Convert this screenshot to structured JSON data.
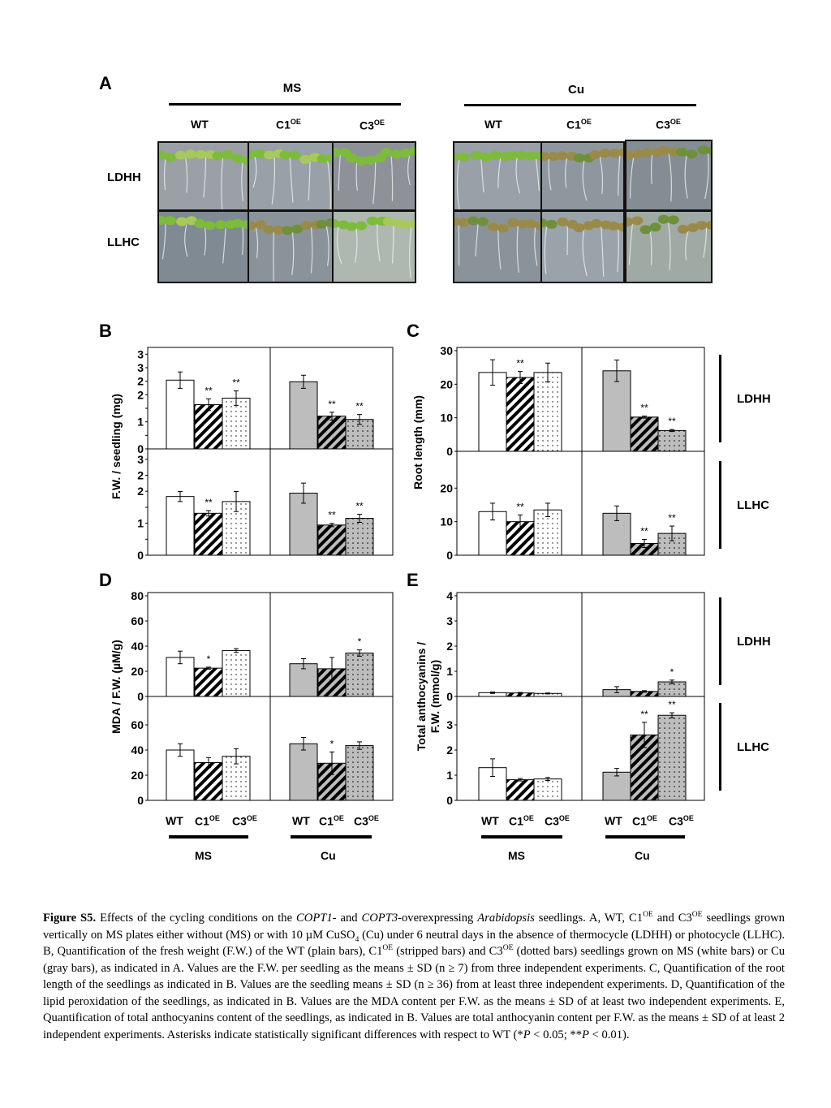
{
  "panelA": {
    "label": "A",
    "groups": [
      "MS",
      "Cu"
    ],
    "genotypes": [
      "WT",
      "C1",
      "C3"
    ],
    "sup": "OE",
    "rows": [
      "LDHH",
      "LLHC"
    ]
  },
  "panel_labels": {
    "B": "B",
    "C": "C",
    "D": "D",
    "E": "E"
  },
  "right_labels": {
    "ldhh": "LDHH",
    "llhc": "LLHC"
  },
  "xaxis": {
    "genotypes": [
      "WT",
      "C1",
      "C3"
    ],
    "sup": "OE",
    "groups": [
      "MS",
      "Cu"
    ]
  },
  "colors": {
    "ms_bar": "#ffffff",
    "cu_bar": "#bdbdbd",
    "stroke": "#000000"
  },
  "chart_data": [
    {
      "id": "B",
      "type": "bar",
      "ylabel": "F.W. / seedling (mg)",
      "categories": [
        "WT",
        "C1OE",
        "C3OE"
      ],
      "groups": [
        "MS",
        "Cu"
      ],
      "patterns": [
        "plain",
        "striped",
        "dotted"
      ],
      "subplots": [
        {
          "row": "LDHH",
          "ylim": [
            0,
            3
          ],
          "ticks": [
            "0",
            "",
            "1",
            "",
            "2",
            "2",
            "3",
            "3"
          ],
          "series": [
            {
              "name": "MS",
              "values": [
                2.1,
                1.35,
                1.55
              ],
              "errors": [
                0.25,
                0.18,
                0.22
              ],
              "sig": [
                "",
                "**",
                "**"
              ]
            },
            {
              "name": "Cu",
              "values": [
                2.05,
                1.0,
                0.9
              ],
              "errors": [
                0.2,
                0.12,
                0.15
              ],
              "sig": [
                "",
                "**",
                "**"
              ]
            }
          ]
        },
        {
          "row": "LLHC",
          "ylim": [
            0,
            3
          ],
          "ticks": [
            "0",
            "",
            "1",
            "",
            "2",
            "2",
            "3"
          ],
          "series": [
            {
              "name": "MS",
              "values": [
                1.75,
                1.25,
                1.6
              ],
              "errors": [
                0.15,
                0.08,
                0.3
              ],
              "sig": [
                "",
                "**",
                ""
              ]
            },
            {
              "name": "Cu",
              "values": [
                1.85,
                0.9,
                1.1
              ],
              "errors": [
                0.3,
                0.05,
                0.12
              ],
              "sig": [
                "",
                "**",
                "**"
              ]
            }
          ]
        }
      ]
    },
    {
      "id": "C",
      "type": "bar",
      "ylabel": "Root length (mm)",
      "categories": [
        "WT",
        "C1OE",
        "C3OE"
      ],
      "groups": [
        "MS",
        "Cu"
      ],
      "subplots": [
        {
          "row": "LDHH",
          "ylim": [
            0,
            30
          ],
          "ticks": [
            "0",
            "10",
            "20",
            "30"
          ],
          "series": [
            {
              "name": "MS",
              "values": [
                23.5,
                22,
                23.5
              ],
              "errors": [
                3.8,
                1.8,
                2.8
              ],
              "sig": [
                "",
                "**",
                ""
              ]
            },
            {
              "name": "Cu",
              "values": [
                24,
                10.2,
                6.2
              ],
              "errors": [
                3.2,
                0.3,
                0.3
              ],
              "sig": [
                "",
                "**",
                "**"
              ]
            }
          ]
        },
        {
          "row": "LLHC",
          "ylim": [
            0,
            30
          ],
          "ticks": [
            "0",
            "10",
            "20"
          ],
          "series": [
            {
              "name": "MS",
              "values": [
                13,
                10,
                13.5
              ],
              "errors": [
                2.5,
                2,
                2
              ],
              "sig": [
                "",
                "**",
                ""
              ]
            },
            {
              "name": "Cu",
              "values": [
                12.5,
                3.5,
                6.5
              ],
              "errors": [
                2.2,
                1.2,
                2.2
              ],
              "sig": [
                "",
                "**",
                "**"
              ]
            }
          ]
        }
      ]
    },
    {
      "id": "D",
      "type": "bar",
      "ylabel": "MDA / F.W. (µM/g)",
      "categories": [
        "WT",
        "C1OE",
        "C3OE"
      ],
      "groups": [
        "MS",
        "Cu"
      ],
      "subplots": [
        {
          "row": "LDHH",
          "ylim": [
            0,
            80
          ],
          "ticks": [
            "0",
            "20",
            "40",
            "60",
            "80"
          ],
          "series": [
            {
              "name": "MS",
              "values": [
                31,
                22.5,
                36.5
              ],
              "errors": [
                5,
                0.8,
                1.5
              ],
              "sig": [
                "",
                "*",
                ""
              ]
            },
            {
              "name": "Cu",
              "values": [
                26,
                22,
                34.5
              ],
              "errors": [
                4,
                9,
                2.5
              ],
              "sig": [
                "",
                "",
                "*"
              ]
            }
          ]
        },
        {
          "row": "LLHC",
          "ylim": [
            0,
            80
          ],
          "ticks": [
            "0",
            "20",
            "40",
            "60"
          ],
          "series": [
            {
              "name": "MS",
              "values": [
                40,
                30,
                35
              ],
              "errors": [
                5,
                4,
                6
              ],
              "sig": [
                "",
                "",
                ""
              ]
            },
            {
              "name": "Cu",
              "values": [
                45,
                29.5,
                43.5
              ],
              "errors": [
                5,
                9,
                3
              ],
              "sig": [
                "",
                "*",
                ""
              ]
            }
          ]
        }
      ]
    },
    {
      "id": "E",
      "type": "bar",
      "ylabel": "Total anthocyanins / F.W. (mmol/g)",
      "categories": [
        "WT",
        "C1OE",
        "C3OE"
      ],
      "groups": [
        "MS",
        "Cu"
      ],
      "subplots": [
        {
          "row": "LDHH",
          "ylim": [
            0,
            4
          ],
          "ticks": [
            "0",
            "1",
            "2",
            "3",
            "4"
          ],
          "series": [
            {
              "name": "MS",
              "values": [
                0.15,
                0.14,
                0.12
              ],
              "errors": [
                0.03,
                0.02,
                0.02
              ],
              "sig": [
                "",
                "",
                ""
              ]
            },
            {
              "name": "Cu",
              "values": [
                0.27,
                0.2,
                0.58
              ],
              "errors": [
                0.12,
                0.03,
                0.07
              ],
              "sig": [
                "",
                "",
                "*"
              ]
            }
          ]
        },
        {
          "row": "LLHC",
          "ylim": [
            0,
            4
          ],
          "ticks": [
            "0",
            "1",
            "2",
            "3"
          ],
          "series": [
            {
              "name": "MS",
              "values": [
                1.3,
                0.82,
                0.85
              ],
              "errors": [
                0.35,
                0.05,
                0.06
              ],
              "sig": [
                "",
                "",
                ""
              ]
            },
            {
              "name": "Cu",
              "values": [
                1.12,
                2.6,
                3.38
              ],
              "errors": [
                0.15,
                0.5,
                0.1
              ],
              "sig": [
                "",
                "**",
                "**"
              ]
            }
          ]
        }
      ]
    }
  ],
  "caption": {
    "p1": "Figure S5.",
    "p2": " Effects of the cycling conditions on the ",
    "p3": "COPT1",
    "p4": "- and ",
    "p5": "COPT3",
    "p6": "-overexpressing ",
    "p7": "Arabidopsis",
    "p8": " seedlings. A, WT, C1",
    "p9": "OE",
    "p10": " and C3",
    "p11": "OE",
    "p12": " seedlings grown vertically on MS plates either without (MS) or with 10 µM CuSO",
    "p13": "4",
    "p14": " (Cu) under 6 neutral days in the absence of thermocycle (LDHH) or photocycle (LLHC). B, Quantification of the fresh weight (F.W.) of the WT (plain bars), C1",
    "p15": "OE",
    "p16": " (stripped bars) and C3",
    "p17": "OE",
    "p18": " (dotted bars) seedlings grown on MS (white bars) or Cu (gray bars), as indicated in A. Values are the F.W. per seedling as the means ± SD (n ≥  7) from three independent experiments. C, Quantification of the root length of the seedlings as indicated in B. Values are the seedling means ± SD (n ≥ 36) from at least three independent experiments. D, Quantification of the lipid peroxidation of the seedlings, as indicated in B. Values are the MDA content per F.W. as the means ± SD of at least two independent experiments. E, Quantification of total anthocyanins content of the seedlings, as indicated in B. Values are total anthocyanin content per F.W. as the means ± SD of at least 2 independent experiments. Asterisks indicate statistically significant differences with respect to WT (*",
    "p19": "P",
    "p20": " < 0.05; **",
    "p21": "P",
    "p22": " < 0.01)."
  }
}
